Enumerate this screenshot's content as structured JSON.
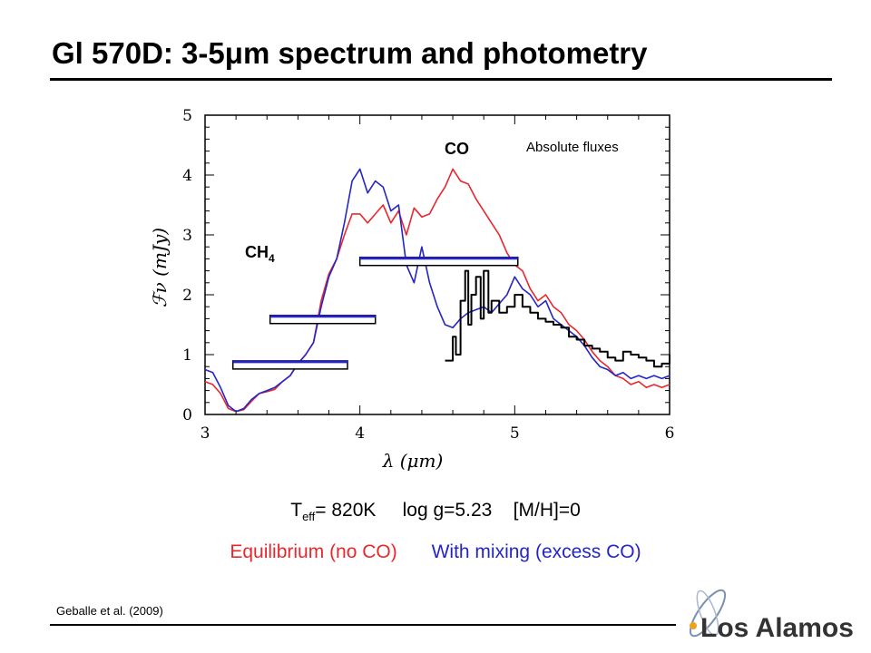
{
  "slide": {
    "title": "Gl 570D: 3-5μm spectrum and photometry",
    "params": {
      "teff_symbol": "T",
      "teff_sub": "eff",
      "teff_value": "= 820K",
      "logg": "log g=5.23",
      "metallicity": "[M/H]=0"
    },
    "legend": {
      "equilibrium": "Equilibrium  (no CO)",
      "mixing": "With mixing (excess CO)"
    },
    "citation": "Geballe et al. (2009)",
    "logo_text": "Los Alamos",
    "colors": {
      "equilibrium": "#e8282e",
      "mixing": "#2525c8",
      "observed": "#000000"
    }
  },
  "chart_data": {
    "type": "line",
    "xlabel": "λ (μm)",
    "ylabel": "ℱν (mJy)",
    "xlim": [
      3,
      6
    ],
    "ylim": [
      0,
      5
    ],
    "xticks": [
      3,
      4,
      5,
      6
    ],
    "yticks": [
      0,
      1,
      2,
      3,
      4,
      5
    ],
    "annotations": {
      "co": "CO",
      "ch4": "CH",
      "ch4_sub": "4",
      "fluxes": "Absolute fluxes"
    },
    "series": [
      {
        "key": "equilibrium",
        "x": [
          3.0,
          3.05,
          3.1,
          3.15,
          3.2,
          3.25,
          3.3,
          3.35,
          3.4,
          3.45,
          3.5,
          3.55,
          3.6,
          3.65,
          3.7,
          3.75,
          3.8,
          3.85,
          3.9,
          3.95,
          4.0,
          4.05,
          4.1,
          4.15,
          4.2,
          4.25,
          4.3,
          4.35,
          4.4,
          4.45,
          4.5,
          4.55,
          4.6,
          4.65,
          4.7,
          4.75,
          4.8,
          4.85,
          4.9,
          4.95,
          5.0,
          5.05,
          5.1,
          5.15,
          5.2,
          5.25,
          5.3,
          5.35,
          5.4,
          5.45,
          5.5,
          5.55,
          5.6,
          5.65,
          5.7,
          5.75,
          5.8,
          5.85,
          5.9,
          5.95,
          6.0
        ],
        "values": [
          0.55,
          0.5,
          0.35,
          0.1,
          0.05,
          0.08,
          0.22,
          0.35,
          0.38,
          0.42,
          0.55,
          0.65,
          0.85,
          1.0,
          1.2,
          1.9,
          2.35,
          2.6,
          3.0,
          3.35,
          3.35,
          3.2,
          3.35,
          3.5,
          3.2,
          3.4,
          3.0,
          3.45,
          3.3,
          3.35,
          3.6,
          3.8,
          4.1,
          3.9,
          3.85,
          3.6,
          3.4,
          3.2,
          3.0,
          2.7,
          2.5,
          2.4,
          2.1,
          1.9,
          2.0,
          1.8,
          1.7,
          1.5,
          1.4,
          1.25,
          1.05,
          0.9,
          0.8,
          0.65,
          0.6,
          0.5,
          0.55,
          0.45,
          0.5,
          0.45,
          0.5
        ]
      },
      {
        "key": "mixing",
        "x": [
          3.0,
          3.05,
          3.1,
          3.15,
          3.2,
          3.25,
          3.3,
          3.35,
          3.4,
          3.45,
          3.5,
          3.55,
          3.6,
          3.65,
          3.7,
          3.75,
          3.8,
          3.85,
          3.9,
          3.95,
          4.0,
          4.05,
          4.1,
          4.15,
          4.2,
          4.25,
          4.3,
          4.35,
          4.4,
          4.45,
          4.5,
          4.55,
          4.6,
          4.65,
          4.7,
          4.75,
          4.8,
          4.85,
          4.9,
          4.95,
          5.0,
          5.05,
          5.1,
          5.15,
          5.2,
          5.25,
          5.3,
          5.35,
          5.4,
          5.45,
          5.5,
          5.55,
          5.6,
          5.65,
          5.7,
          5.75,
          5.8,
          5.85,
          5.9,
          5.95,
          6.0
        ],
        "values": [
          0.75,
          0.7,
          0.45,
          0.15,
          0.05,
          0.1,
          0.25,
          0.35,
          0.4,
          0.45,
          0.55,
          0.65,
          0.85,
          1.0,
          1.2,
          1.8,
          2.3,
          2.6,
          3.2,
          3.9,
          4.1,
          3.7,
          3.9,
          3.8,
          3.4,
          3.5,
          2.5,
          2.2,
          2.8,
          2.2,
          1.8,
          1.5,
          1.45,
          1.6,
          1.7,
          1.75,
          1.8,
          1.7,
          1.85,
          2.0,
          2.3,
          2.1,
          2.0,
          1.8,
          1.9,
          1.6,
          1.5,
          1.4,
          1.3,
          1.15,
          0.95,
          0.8,
          0.75,
          0.65,
          0.7,
          0.6,
          0.65,
          0.6,
          0.65,
          0.6,
          0.65
        ]
      },
      {
        "key": "observed",
        "x": [
          4.55,
          4.6,
          4.62,
          4.65,
          4.68,
          4.7,
          4.72,
          4.75,
          4.78,
          4.8,
          4.83,
          4.85,
          4.9,
          4.95,
          5.0,
          5.05,
          5.1,
          5.15,
          5.2,
          5.25,
          5.3,
          5.35,
          5.4,
          5.45,
          5.5,
          5.55,
          5.6,
          5.65,
          5.7,
          5.75,
          5.8,
          5.85,
          5.9,
          5.95,
          6.0
        ],
        "values": [
          0.9,
          1.3,
          1.0,
          1.9,
          2.4,
          1.5,
          2.0,
          2.3,
          1.6,
          2.4,
          1.7,
          1.9,
          1.7,
          1.8,
          2.0,
          1.8,
          1.7,
          1.6,
          1.55,
          1.5,
          1.45,
          1.3,
          1.25,
          1.15,
          1.1,
          1.05,
          0.95,
          0.9,
          1.05,
          1.0,
          0.95,
          0.9,
          0.8,
          0.85,
          1.0
        ]
      }
    ],
    "photometry": [
      {
        "x_start": 3.18,
        "x_end": 3.92,
        "value": 0.82
      },
      {
        "x_start": 3.42,
        "x_end": 4.1,
        "value": 1.58
      },
      {
        "x_start": 4.0,
        "x_end": 5.02,
        "value": 2.55
      }
    ]
  }
}
